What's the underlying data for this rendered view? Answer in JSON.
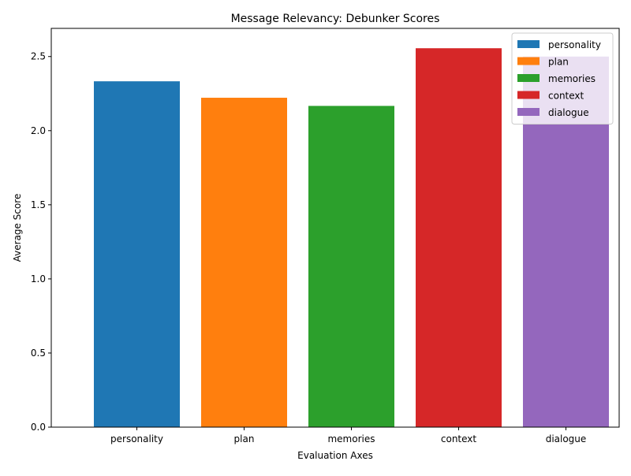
{
  "chart_data": {
    "type": "bar",
    "title": "Message Relevancy: Debunker Scores",
    "xlabel": "Evaluation Axes",
    "ylabel": "Average Score",
    "categories": [
      "personality",
      "plan",
      "memories",
      "context",
      "dialogue"
    ],
    "values": [
      2.333,
      2.222,
      2.167,
      2.556,
      2.5
    ],
    "colors": [
      "#1f77b4",
      "#ff7f0e",
      "#2ca02c",
      "#d62728",
      "#9467bd"
    ],
    "ylim": [
      0,
      2.69
    ],
    "yticks": [
      "0.0",
      "0.5",
      "1.0",
      "1.5",
      "2.0",
      "2.5"
    ],
    "grid": false,
    "legend": {
      "placement": "top-right",
      "entries": [
        "personality",
        "plan",
        "memories",
        "context",
        "dialogue"
      ]
    }
  }
}
